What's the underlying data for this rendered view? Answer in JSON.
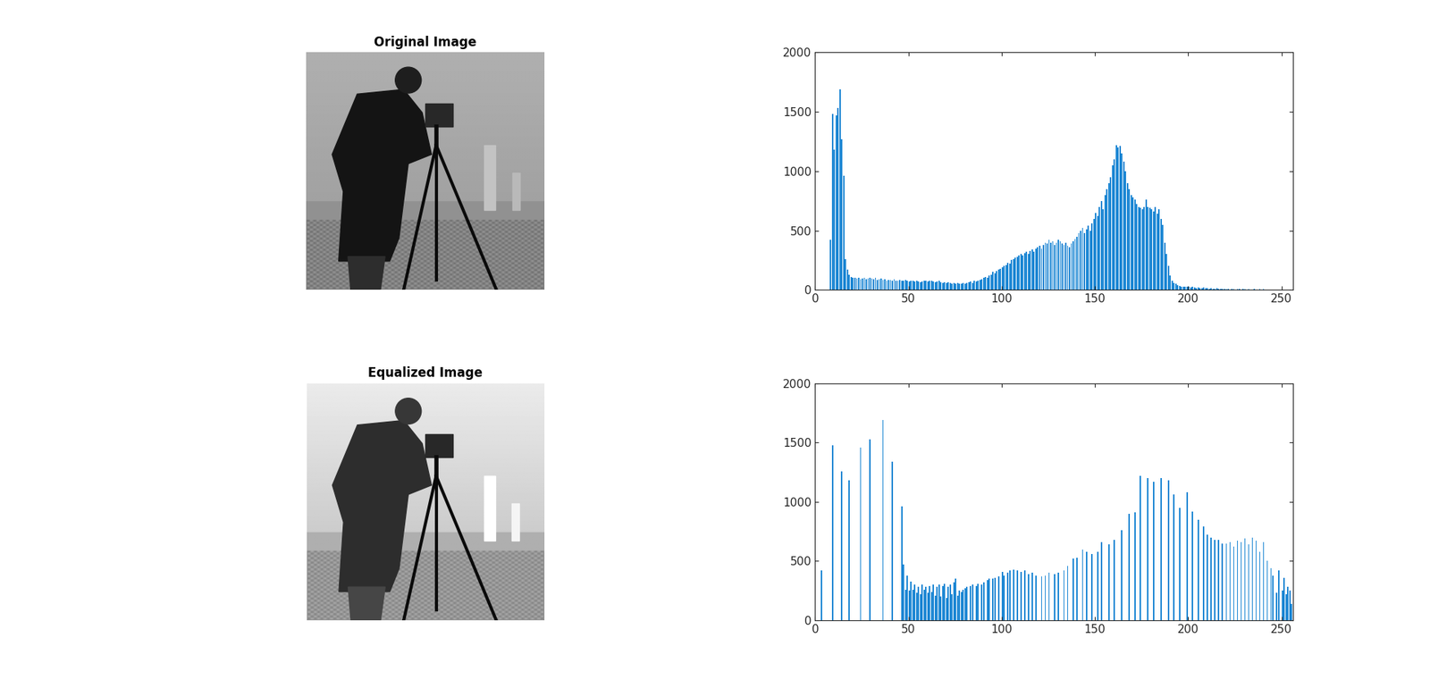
{
  "images": [
    {
      "title": "Original Image",
      "contrast": "original"
    },
    {
      "title": "Equalized Image",
      "contrast": "equalized"
    }
  ],
  "chart_data": [
    {
      "type": "histogram",
      "color": "#1f88d4",
      "bins": [
        0,
        1,
        2,
        3,
        4,
        5,
        6,
        7,
        8,
        9,
        10,
        11,
        12,
        13,
        14,
        15,
        16,
        17,
        18,
        19,
        20,
        21,
        22,
        23,
        24,
        25,
        26,
        27,
        28,
        29,
        30,
        31,
        32,
        33,
        34,
        35,
        36,
        37,
        38,
        39,
        40,
        41,
        42,
        43,
        44,
        45,
        46,
        47,
        48,
        49,
        50,
        51,
        52,
        53,
        54,
        55,
        56,
        57,
        58,
        59,
        60,
        61,
        62,
        63,
        64,
        65,
        66,
        67,
        68,
        69,
        70,
        71,
        72,
        73,
        74,
        75,
        76,
        77,
        78,
        79,
        80,
        81,
        82,
        83,
        84,
        85,
        86,
        87,
        88,
        89,
        90,
        91,
        92,
        93,
        94,
        95,
        96,
        97,
        98,
        99,
        100,
        101,
        102,
        103,
        104,
        105,
        106,
        107,
        108,
        109,
        110,
        111,
        112,
        113,
        114,
        115,
        116,
        117,
        118,
        119,
        120,
        121,
        122,
        123,
        124,
        125,
        126,
        127,
        128,
        129,
        130,
        131,
        132,
        133,
        134,
        135,
        136,
        137,
        138,
        139,
        140,
        141,
        142,
        143,
        144,
        145,
        146,
        147,
        148,
        149,
        150,
        151,
        152,
        153,
        154,
        155,
        156,
        157,
        158,
        159,
        160,
        161,
        162,
        163,
        164,
        165,
        166,
        167,
        168,
        169,
        170,
        171,
        172,
        173,
        174,
        175,
        176,
        177,
        178,
        179,
        180,
        181,
        182,
        183,
        184,
        185,
        186,
        187,
        188,
        189,
        190,
        191,
        192,
        193,
        194,
        195,
        196,
        197,
        198,
        199,
        200,
        201,
        202,
        203,
        204,
        205,
        206,
        207,
        208,
        209,
        210,
        211,
        212,
        213,
        214,
        215,
        216,
        217,
        218,
        219,
        220,
        221,
        222,
        223,
        224,
        225,
        226,
        227,
        228,
        229,
        230,
        231,
        232,
        233,
        234,
        235,
        236,
        237,
        238,
        239,
        240,
        241,
        242,
        243,
        244,
        245,
        246,
        247,
        248,
        249,
        250,
        251,
        252,
        253,
        254,
        255,
        256
      ],
      "counts": [
        0,
        0,
        0,
        0,
        0,
        0,
        0,
        0,
        420,
        1480,
        1180,
        1470,
        1530,
        1690,
        1270,
        960,
        260,
        170,
        130,
        110,
        105,
        100,
        95,
        100,
        90,
        95,
        100,
        90,
        95,
        100,
        95,
        90,
        100,
        85,
        90,
        95,
        85,
        90,
        80,
        85,
        85,
        80,
        90,
        75,
        80,
        85,
        75,
        80,
        85,
        75,
        70,
        75,
        80,
        70,
        75,
        70,
        65,
        70,
        75,
        80,
        70,
        75,
        80,
        70,
        65,
        70,
        75,
        65,
        60,
        65,
        60,
        65,
        60,
        55,
        60,
        55,
        60,
        55,
        50,
        60,
        55,
        60,
        65,
        70,
        60,
        75,
        70,
        80,
        85,
        90,
        100,
        110,
        105,
        120,
        130,
        150,
        140,
        160,
        170,
        180,
        190,
        200,
        210,
        230,
        220,
        250,
        260,
        270,
        280,
        290,
        300,
        290,
        310,
        320,
        300,
        330,
        340,
        320,
        350,
        360,
        370,
        350,
        380,
        400,
        390,
        420,
        400,
        410,
        380,
        400,
        420,
        410,
        390,
        380,
        400,
        370,
        360,
        390,
        410,
        430,
        450,
        480,
        500,
        520,
        480,
        510,
        540,
        500,
        560,
        600,
        650,
        620,
        700,
        750,
        680,
        800,
        850,
        900,
        950,
        1050,
        1100,
        1220,
        1200,
        1210,
        1150,
        1080,
        1000,
        900,
        850,
        800,
        780,
        760,
        720,
        700,
        690,
        680,
        700,
        760,
        700,
        690,
        680,
        660,
        700,
        640,
        680,
        600,
        550,
        400,
        300,
        200,
        120,
        80,
        60,
        50,
        40,
        35,
        30,
        30,
        25,
        30,
        25,
        20,
        25,
        20,
        15,
        20,
        15,
        15,
        20,
        15,
        15,
        10,
        15,
        10,
        10,
        15,
        10,
        10,
        10,
        10,
        10,
        10,
        5,
        10,
        10,
        5,
        10,
        10,
        5,
        10,
        10,
        5,
        10,
        5,
        5,
        10,
        5,
        5,
        10,
        5,
        10,
        5,
        5,
        5,
        5,
        5,
        5,
        5,
        5,
        5,
        5,
        5,
        5,
        0,
        0,
        0
      ],
      "xlim": [
        0,
        256
      ],
      "xticks": [
        0,
        50,
        100,
        150,
        200,
        250
      ],
      "ylim": [
        0,
        2000
      ],
      "yticks": [
        0,
        500,
        1000,
        1500,
        2000
      ]
    },
    {
      "type": "histogram",
      "color": "#1f88d4",
      "bins": [
        0,
        1,
        2,
        3,
        4,
        5,
        6,
        7,
        8,
        9,
        10,
        11,
        12,
        13,
        14,
        15,
        16,
        17,
        18,
        19,
        20,
        21,
        22,
        23,
        24,
        25,
        26,
        27,
        28,
        29,
        30,
        31,
        32,
        33,
        34,
        35,
        36,
        37,
        38,
        39,
        40,
        41,
        42,
        43,
        44,
        45,
        46,
        47,
        48,
        49,
        50,
        51,
        52,
        53,
        54,
        55,
        56,
        57,
        58,
        59,
        60,
        61,
        62,
        63,
        64,
        65,
        66,
        67,
        68,
        69,
        70,
        71,
        72,
        73,
        74,
        75,
        76,
        77,
        78,
        79,
        80,
        81,
        82,
        83,
        84,
        85,
        86,
        87,
        88,
        89,
        90,
        91,
        92,
        93,
        94,
        95,
        96,
        97,
        98,
        99,
        100,
        101,
        102,
        103,
        104,
        105,
        106,
        107,
        108,
        109,
        110,
        111,
        112,
        113,
        114,
        115,
        116,
        117,
        118,
        119,
        120,
        121,
        122,
        123,
        124,
        125,
        126,
        127,
        128,
        129,
        130,
        131,
        132,
        133,
        134,
        135,
        136,
        137,
        138,
        139,
        140,
        141,
        142,
        143,
        144,
        145,
        146,
        147,
        148,
        149,
        150,
        151,
        152,
        153,
        154,
        155,
        156,
        157,
        158,
        159,
        160,
        161,
        162,
        163,
        164,
        165,
        166,
        167,
        168,
        169,
        170,
        171,
        172,
        173,
        174,
        175,
        176,
        177,
        178,
        179,
        180,
        181,
        182,
        183,
        184,
        185,
        186,
        187,
        188,
        189,
        190,
        191,
        192,
        193,
        194,
        195,
        196,
        197,
        198,
        199,
        200,
        201,
        202,
        203,
        204,
        205,
        206,
        207,
        208,
        209,
        210,
        211,
        212,
        213,
        214,
        215,
        216,
        217,
        218,
        219,
        220,
        221,
        222,
        223,
        224,
        225,
        226,
        227,
        228,
        229,
        230,
        231,
        232,
        233,
        234,
        235,
        236,
        237,
        238,
        239,
        240,
        241,
        242,
        243,
        244,
        245,
        246,
        247,
        248,
        249,
        250,
        251,
        252,
        253,
        254,
        255,
        256
      ],
      "counts": [
        0,
        0,
        0,
        420,
        0,
        0,
        0,
        0,
        0,
        1480,
        0,
        0,
        0,
        0,
        1260,
        0,
        0,
        0,
        1180,
        0,
        0,
        0,
        0,
        0,
        1460,
        0,
        0,
        0,
        0,
        1530,
        0,
        0,
        0,
        0,
        0,
        0,
        1690,
        0,
        0,
        0,
        0,
        1340,
        0,
        0,
        0,
        0,
        960,
        470,
        260,
        380,
        250,
        330,
        260,
        300,
        230,
        280,
        220,
        300,
        260,
        280,
        230,
        290,
        240,
        300,
        210,
        280,
        300,
        200,
        290,
        310,
        190,
        280,
        300,
        220,
        320,
        350,
        210,
        250,
        240,
        260,
        270,
        280,
        0,
        290,
        300,
        0,
        290,
        310,
        0,
        300,
        320,
        0,
        340,
        350,
        0,
        350,
        360,
        0,
        370,
        0,
        410,
        380,
        0,
        400,
        420,
        0,
        430,
        0,
        420,
        0,
        410,
        0,
        420,
        0,
        390,
        0,
        400,
        0,
        380,
        0,
        0,
        370,
        0,
        380,
        0,
        400,
        0,
        0,
        390,
        0,
        400,
        0,
        0,
        420,
        0,
        460,
        0,
        0,
        520,
        0,
        530,
        0,
        0,
        600,
        0,
        580,
        0,
        0,
        560,
        0,
        0,
        580,
        0,
        660,
        0,
        0,
        0,
        640,
        0,
        0,
        680,
        0,
        0,
        0,
        760,
        0,
        0,
        0,
        900,
        0,
        0,
        910,
        0,
        0,
        1220,
        0,
        0,
        0,
        1200,
        0,
        0,
        1170,
        0,
        0,
        0,
        1200,
        0,
        0,
        0,
        1180,
        0,
        0,
        1060,
        0,
        0,
        950,
        0,
        0,
        0,
        1080,
        0,
        0,
        920,
        0,
        0,
        850,
        0,
        0,
        790,
        0,
        720,
        0,
        700,
        0,
        680,
        0,
        680,
        0,
        650,
        0,
        650,
        0,
        660,
        0,
        620,
        0,
        670,
        0,
        660,
        0,
        690,
        0,
        640,
        0,
        700,
        0,
        670,
        0,
        580,
        0,
        660,
        0,
        500,
        0,
        440,
        380,
        0,
        230,
        420,
        0,
        250,
        360,
        220,
        280,
        250,
        140
      ],
      "xlim": [
        0,
        256
      ],
      "xticks": [
        0,
        50,
        100,
        150,
        200,
        250
      ],
      "ylim": [
        0,
        2000
      ],
      "yticks": [
        0,
        500,
        1000,
        1500,
        2000
      ]
    }
  ]
}
